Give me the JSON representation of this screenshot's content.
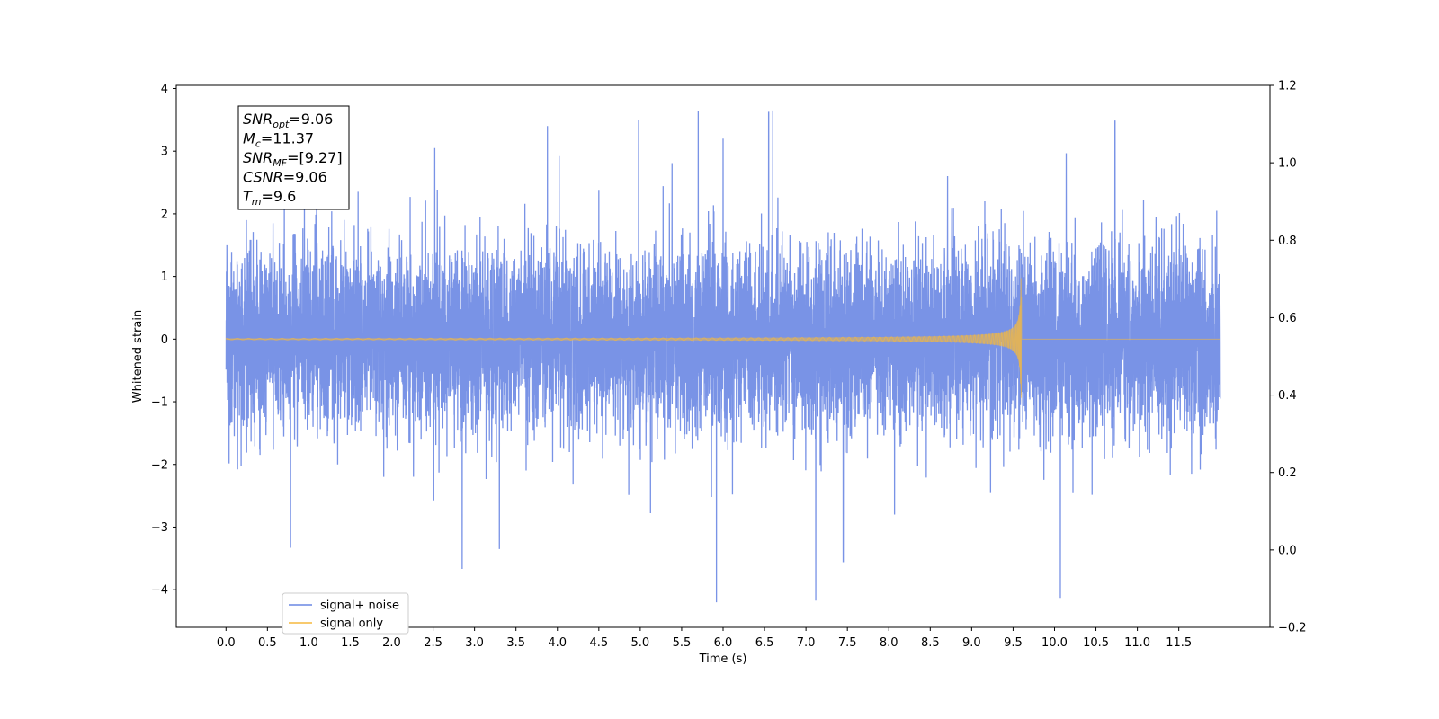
{
  "chart_data": {
    "type": "line",
    "xlabel": "Time (s)",
    "ylabel": "Whitened strain",
    "xlim": [
      -0.6,
      12.6
    ],
    "ylim": [
      -4.6,
      4.05
    ],
    "xticks": [
      0.0,
      0.5,
      1.0,
      1.5,
      2.0,
      2.5,
      3.0,
      3.5,
      4.0,
      4.5,
      5.0,
      5.5,
      6.0,
      6.5,
      7.0,
      7.5,
      8.0,
      8.5,
      9.0,
      9.5,
      10.0,
      10.5,
      11.0,
      11.5
    ],
    "xtick_labels": [
      "0.0",
      "0.5",
      "1.0",
      "1.5",
      "2.0",
      "2.5",
      "3.0",
      "3.5",
      "4.0",
      "4.5",
      "5.0",
      "5.5",
      "6.0",
      "6.5",
      "7.0",
      "7.5",
      "8.0",
      "8.5",
      "9.0",
      "9.5",
      "10.0",
      "10.5",
      "11.0",
      "11.5"
    ],
    "yticks": [
      -4,
      -3,
      -2,
      -1,
      0,
      1,
      2,
      3,
      4
    ],
    "ytick_labels": [
      "−4",
      "−3",
      "−2",
      "−1",
      "0",
      "1",
      "2",
      "3",
      "4"
    ],
    "y2lim": [
      -0.2,
      1.2
    ],
    "y2ticks": [
      -0.2,
      0.0,
      0.2,
      0.4,
      0.6,
      0.8,
      1.0,
      1.2
    ],
    "y2tick_labels": [
      "−0.2",
      "0.0",
      "0.2",
      "0.4",
      "0.6",
      "0.8",
      "1.0",
      "1.2"
    ],
    "grid": false,
    "legend_position": "lower-left",
    "series": [
      {
        "name": "signal+ noise",
        "color": "#6a87e3",
        "x_range": [
          0.0,
          12.0
        ],
        "envelope_min": -4.2,
        "envelope_max": 3.65,
        "notable_peaks": [
          {
            "x": 5.92,
            "y": -4.2
          },
          {
            "x": 6.6,
            "y": 3.65
          },
          {
            "x": 6.55,
            "y": 3.62
          },
          {
            "x": 4.98,
            "y": 3.5
          },
          {
            "x": 10.73,
            "y": 3.48
          },
          {
            "x": 3.88,
            "y": 3.4
          },
          {
            "x": 0.78,
            "y": -3.33
          },
          {
            "x": 3.3,
            "y": -3.35
          },
          {
            "x": 7.45,
            "y": -3.55
          },
          {
            "x": 2.52,
            "y": 3.05
          },
          {
            "x": 6.0,
            "y": 3.2
          }
        ]
      },
      {
        "name": "signal only",
        "color": "#f5b93e",
        "x_range": [
          0.0,
          12.0
        ],
        "merger_time": 9.6,
        "peak_amplitude_positive": 1.05,
        "peak_amplitude_negative": -1.55
      }
    ],
    "annotation": {
      "lines": [
        {
          "base": "SNR",
          "sub": "opt",
          "value": "=9.06"
        },
        {
          "base": "M",
          "sub": "c",
          "value": "=11.37"
        },
        {
          "base": "SNR",
          "sub": "MF",
          "value": "=[9.27]"
        },
        {
          "base": "CSNR",
          "sub": "",
          "value": "=9.06"
        },
        {
          "base": "T",
          "sub": "m",
          "value": "=9.6"
        }
      ]
    }
  }
}
